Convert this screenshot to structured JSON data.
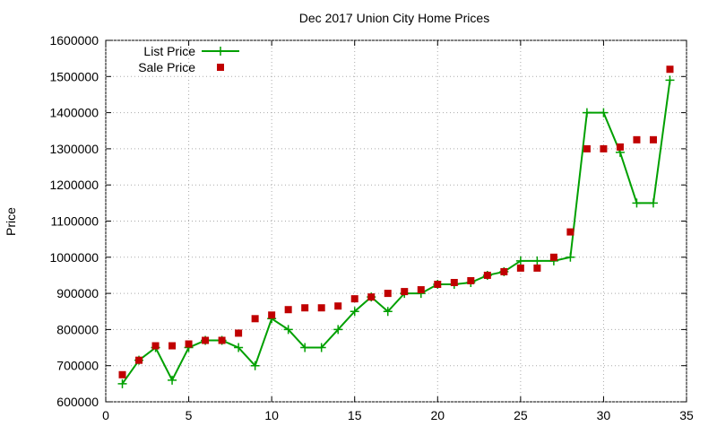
{
  "chart_data": {
    "type": "scatter",
    "title": "Dec 2017 Union City Home Prices",
    "y_label": "Price",
    "x": [
      1,
      2,
      3,
      4,
      5,
      6,
      7,
      8,
      9,
      10,
      11,
      12,
      13,
      14,
      15,
      16,
      17,
      18,
      19,
      20,
      21,
      22,
      23,
      24,
      25,
      26,
      27,
      28,
      29,
      30,
      31,
      32,
      33,
      34
    ],
    "series": [
      {
        "name": "List Price",
        "color": "#00a000",
        "style": "linespoints",
        "values": [
          650000,
          715000,
          750000,
          660000,
          750000,
          770000,
          770000,
          750000,
          700000,
          830000,
          800000,
          750000,
          750000,
          800000,
          850000,
          890000,
          850000,
          900000,
          900000,
          925000,
          925000,
          930000,
          950000,
          960000,
          990000,
          990000,
          990000,
          1000000,
          1400000,
          1400000,
          1290000,
          1150000,
          1150000,
          1490000
        ]
      },
      {
        "name": "Sale Price",
        "color": "#c00000",
        "style": "points",
        "values": [
          675000,
          715000,
          755000,
          755000,
          760000,
          770000,
          770000,
          790000,
          830000,
          840000,
          855000,
          860000,
          860000,
          865000,
          885000,
          890000,
          900000,
          905000,
          910000,
          925000,
          930000,
          935000,
          950000,
          960000,
          970000,
          970000,
          1000000,
          1070000,
          1300000,
          1300000,
          1305000,
          1325000,
          1325000,
          1520000
        ]
      }
    ],
    "xlim": [
      0,
      35
    ],
    "xticks": [
      0,
      5,
      10,
      15,
      20,
      25,
      30,
      35
    ],
    "ylim": [
      600000,
      1600000
    ],
    "yticks": [
      600000,
      700000,
      800000,
      900000,
      1000000,
      1100000,
      1200000,
      1300000,
      1400000,
      1500000,
      1600000
    ],
    "grid": true,
    "legend": "top-left"
  }
}
